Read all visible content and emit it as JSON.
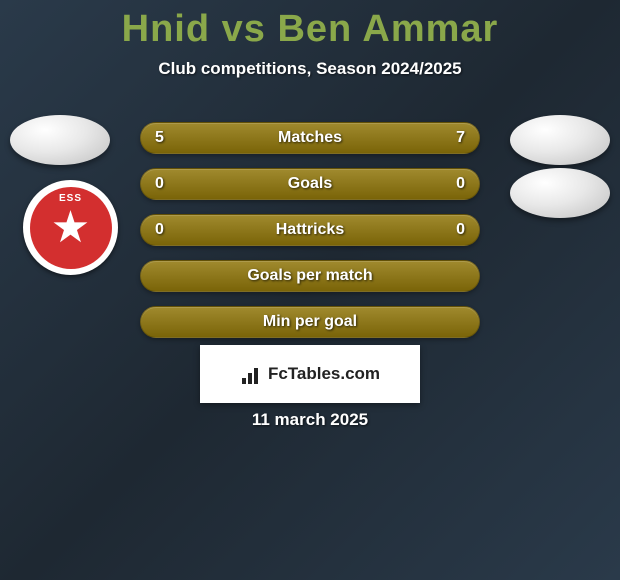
{
  "title": {
    "text": "Hnid vs Ben Ammar",
    "color": "#8aa84a",
    "fontsize": 38
  },
  "subtitle": "Club competitions, Season 2024/2025",
  "club_logo": {
    "name": "ESS",
    "bg_color": "#d32f2f",
    "star_color": "#ffffff"
  },
  "bars": [
    {
      "label": "Matches",
      "left": "5",
      "right": "7",
      "color": "#a08a2e",
      "show_values": true
    },
    {
      "label": "Goals",
      "left": "0",
      "right": "0",
      "color": "#a08a2e",
      "show_values": true
    },
    {
      "label": "Hattricks",
      "left": "0",
      "right": "0",
      "color": "#a08a2e",
      "show_values": true
    },
    {
      "label": "Goals per match",
      "left": "",
      "right": "",
      "color": "#a08a2e",
      "show_values": false
    },
    {
      "label": "Min per goal",
      "left": "",
      "right": "",
      "color": "#a08a2e",
      "show_values": false
    }
  ],
  "watermark": "FcTables.com",
  "date": "11 march 2025",
  "colors": {
    "background_gradient": [
      "#2a3a4a",
      "#1e2832",
      "#2a3a4a"
    ],
    "text": "#ffffff",
    "avatar": "#e8e8e8"
  }
}
